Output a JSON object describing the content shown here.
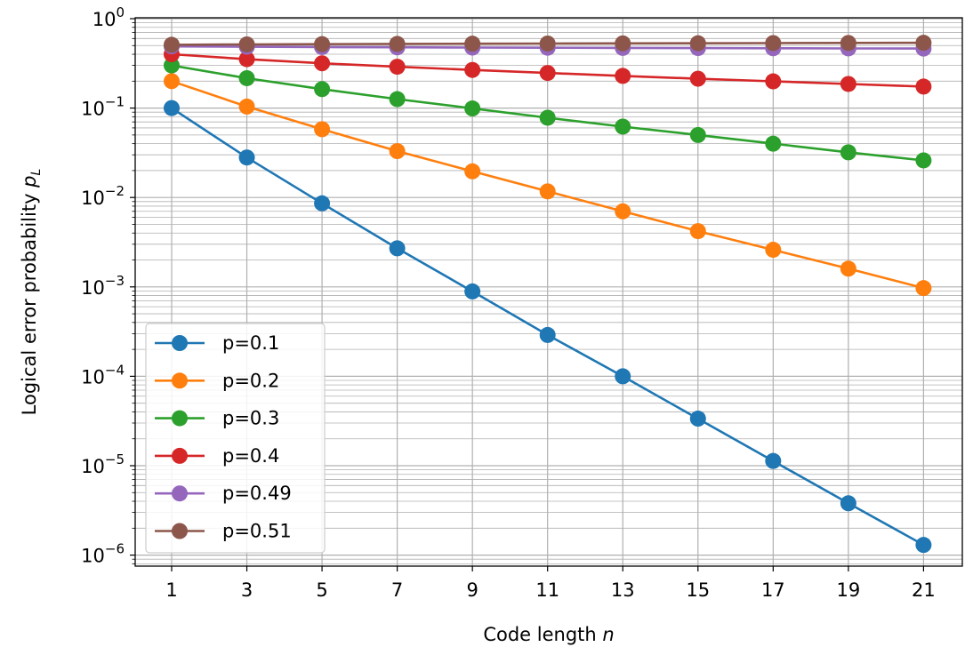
{
  "chart_data": {
    "type": "line",
    "xlabel": "Code length n",
    "xlabel_main": "Code length ",
    "xlabel_var": "n",
    "ylabel": "Logical error probability p_L",
    "ylabel_main": "Logical error probability ",
    "ylabel_var": "p",
    "ylabel_sub": "L",
    "y_scale": "log",
    "x": [
      1,
      3,
      5,
      7,
      9,
      11,
      13,
      15,
      17,
      19,
      21
    ],
    "xlim": [
      0,
      22
    ],
    "ylim": [
      1e-06,
      1
    ],
    "x_ticks": [
      "1",
      "3",
      "5",
      "7",
      "9",
      "11",
      "13",
      "15",
      "17",
      "19",
      "21"
    ],
    "y_ticks": [
      {
        "base": "10",
        "exp": "0"
      },
      {
        "base": "10",
        "exp": "−1"
      },
      {
        "base": "10",
        "exp": "−2"
      },
      {
        "base": "10",
        "exp": "−3"
      },
      {
        "base": "10",
        "exp": "−4"
      },
      {
        "base": "10",
        "exp": "−5"
      },
      {
        "base": "10",
        "exp": "−6"
      }
    ],
    "grid": true,
    "legend_position": "lower-left",
    "series": [
      {
        "name": "p=0.1",
        "color": "#1f77b4",
        "values": [
          0.1,
          0.028,
          0.0086,
          0.0027,
          0.00089,
          0.00029,
          0.0001,
          3.36e-05,
          1.13e-05,
          3.8e-06,
          1.3e-06
        ]
      },
      {
        "name": "p=0.2",
        "color": "#ff7f0e",
        "values": [
          0.2,
          0.104,
          0.058,
          0.033,
          0.0196,
          0.0117,
          0.007,
          0.0042,
          0.0026,
          0.0016,
          0.00097
        ]
      },
      {
        "name": "p=0.3",
        "color": "#2ca02c",
        "values": [
          0.3,
          0.216,
          0.163,
          0.126,
          0.099,
          0.078,
          0.062,
          0.05,
          0.04,
          0.032,
          0.026
        ]
      },
      {
        "name": "p=0.4",
        "color": "#d62728",
        "values": [
          0.4,
          0.352,
          0.317,
          0.29,
          0.267,
          0.247,
          0.229,
          0.213,
          0.199,
          0.186,
          0.174
        ]
      },
      {
        "name": "p=0.49",
        "color": "#9467bd",
        "values": [
          0.49,
          0.485,
          0.481,
          0.478,
          0.475,
          0.473,
          0.471,
          0.469,
          0.467,
          0.465,
          0.463
        ]
      },
      {
        "name": "p=0.51",
        "color": "#8c564b",
        "values": [
          0.51,
          0.515,
          0.519,
          0.522,
          0.525,
          0.527,
          0.529,
          0.531,
          0.533,
          0.535,
          0.537
        ]
      }
    ]
  }
}
